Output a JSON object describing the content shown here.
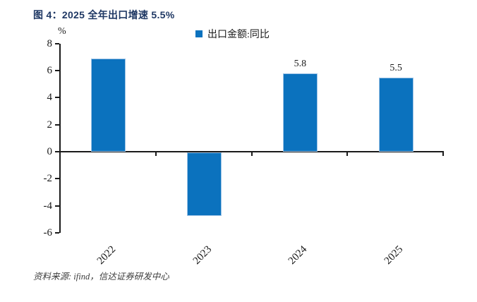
{
  "page": {
    "background": "#ffffff"
  },
  "title": {
    "text": "图 4：2025 全年出口增速 5.5%",
    "color": "#1f3864"
  },
  "axis_unit_label": "%",
  "legend": {
    "marker_color": "#0b72be",
    "label": "出口金额:同比"
  },
  "source_note": "资料来源: ifind，信达证券研发中心",
  "chart_data": {
    "type": "bar",
    "title": "图 4：2025 全年出口增速 5.5%",
    "categories": [
      "2022",
      "2023",
      "2024",
      "2025"
    ],
    "series": [
      {
        "name": "出口金额:同比",
        "values": [
          6.9,
          -4.7,
          5.8,
          5.5
        ]
      }
    ],
    "data_labels": [
      "",
      "",
      "5.8",
      "5.5"
    ],
    "xlabel": "",
    "ylabel": "%",
    "ylim": [
      -6,
      8
    ],
    "yticks": [
      8,
      6,
      4,
      2,
      0,
      -2,
      -4,
      -6
    ],
    "grid": false,
    "legend_position": "top",
    "bar_color": "#0b72be",
    "axis_color": "#1a1a1a",
    "source": "资料来源: ifind，信达证券研发中心"
  }
}
